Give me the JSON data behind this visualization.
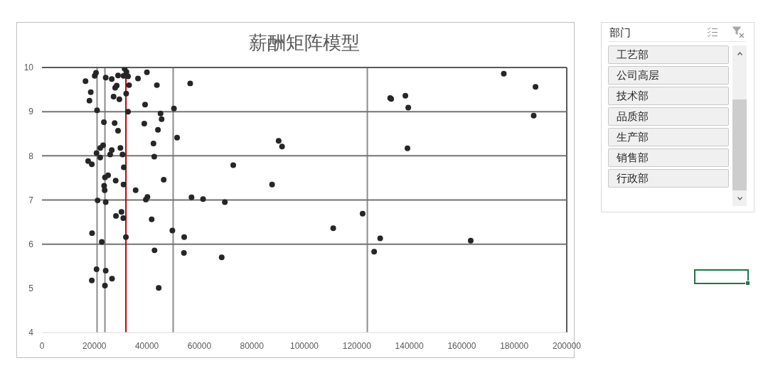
{
  "chart_data": [
    {
      "type": "scatter",
      "title": "薪酬矩阵模型",
      "x": [
        16600,
        18600,
        18100,
        20600,
        20100,
        21000,
        24300,
        26600,
        29000,
        31500,
        32200,
        31100,
        32800,
        28500,
        27900,
        33200,
        36600,
        40000,
        43800,
        32100,
        27300,
        29500,
        39300,
        32800,
        50300,
        45200,
        45600,
        23600,
        27700,
        29000,
        39000,
        44200,
        51500,
        42500,
        42800,
        23300,
        22200,
        20800,
        22200,
        26600,
        26000,
        29900,
        30700,
        17600,
        19000,
        31200,
        25200,
        24000,
        28100,
        46400,
        23700,
        23900,
        31100,
        35700,
        40200,
        39600,
        21200,
        24300,
        30300,
        28200,
        31000,
        41800,
        49700,
        19100,
        32000,
        54200,
        22800,
        42900,
        54100,
        20800,
        24300,
        19000,
        26700,
        24000,
        44500,
        56500,
        90200,
        91500,
        72900,
        87700,
        57000,
        61400,
        69700,
        122200,
        111000,
        128900,
        126600,
        68500,
        132700,
        133100,
        138500,
        139600,
        139300,
        176000,
        188100,
        187400,
        163400
      ],
      "values": [
        9.69,
        9.44,
        9.25,
        9.88,
        9.81,
        9.03,
        9.77,
        9.74,
        9.82,
        9.97,
        9.9,
        9.81,
        9.8,
        9.59,
        9.54,
        9.6,
        9.75,
        9.89,
        9.6,
        9.41,
        9.34,
        9.28,
        9.16,
        9,
        9.07,
        8.96,
        8.83,
        8.76,
        8.74,
        8.57,
        8.73,
        8.59,
        8.41,
        8.28,
        7.98,
        8.24,
        8.18,
        8.06,
        7.96,
        8.13,
        8.03,
        8.18,
        8.03,
        7.88,
        7.81,
        7.74,
        7.56,
        7.51,
        7.44,
        7.46,
        7.32,
        7.22,
        7.35,
        7.22,
        7.07,
        7.01,
        6.99,
        6.95,
        6.73,
        6.64,
        6.59,
        6.56,
        6.31,
        6.25,
        6.16,
        6.16,
        6.05,
        5.86,
        5.8,
        5.43,
        5.4,
        5.18,
        5.22,
        5.06,
        5.01,
        9.64,
        8.34,
        8.21,
        7.79,
        7.35,
        7.06,
        7.02,
        6.95,
        6.69,
        6.36,
        6.13,
        5.83,
        5.7,
        9.31,
        9.29,
        9.36,
        9.09,
        8.17,
        9.86,
        9.56,
        8.91,
        6.08
      ],
      "color": "#262626",
      "marker": "circle",
      "xlim": [
        0,
        200000
      ],
      "xticks": [
        0,
        20000,
        40000,
        60000,
        80000,
        100000,
        120000,
        140000,
        160000,
        180000,
        200000
      ],
      "ylim": [
        4,
        10
      ],
      "yticks": [
        4,
        5,
        6,
        7,
        8,
        9,
        10
      ],
      "ref_lines": [
        {
          "axis": "x",
          "value": 21000,
          "color": "#8c8c8c"
        },
        {
          "axis": "x",
          "value": 24000,
          "color": "#8c8c8c"
        },
        {
          "axis": "x",
          "value": 50000,
          "color": "#8c8c8c"
        },
        {
          "axis": "x",
          "value": 124000,
          "color": "#8c8c8c"
        },
        {
          "axis": "x",
          "value": 200000,
          "color": "#595959"
        },
        {
          "axis": "y",
          "value": 6,
          "color": "#737373"
        },
        {
          "axis": "y",
          "value": 7,
          "color": "#737373"
        },
        {
          "axis": "y",
          "value": 8,
          "color": "#737373"
        },
        {
          "axis": "y",
          "value": 9,
          "color": "#737373"
        },
        {
          "axis": "y",
          "value": 10,
          "color": "#595959"
        },
        {
          "axis": "x",
          "value": 32000,
          "color": "#c00000"
        }
      ]
    },
    {
      "type": "other",
      "title": "部门",
      "categories": [
        "工艺部",
        "公司高层",
        "技术部",
        "品质部",
        "生产部",
        "销售部",
        "行政部"
      ]
    }
  ]
}
